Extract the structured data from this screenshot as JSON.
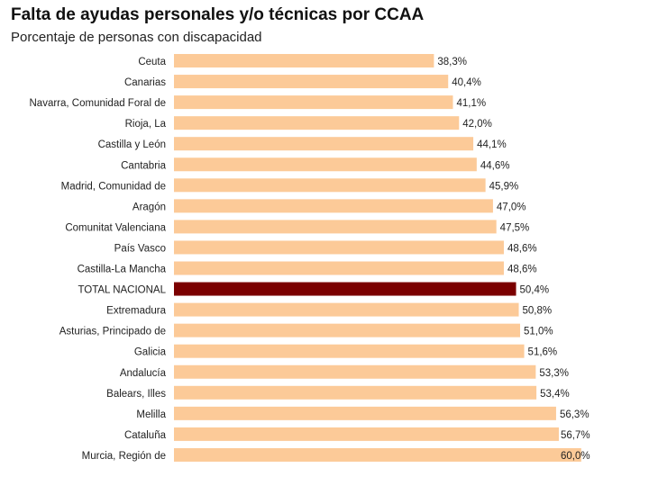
{
  "chart_data": {
    "type": "bar",
    "title": "Falta de ayudas personales y/o técnicas por CCAA",
    "subtitle": "Porcentaje de personas con discapacidad",
    "xlabel": "",
    "ylabel": "",
    "xlim": [
      0,
      60
    ],
    "categories": [
      "Ceuta",
      "Canarias",
      "Navarra, Comunidad Foral de",
      "Rioja, La",
      "Castilla y León",
      "Cantabria",
      "Madrid, Comunidad de",
      "Aragón",
      "Comunitat Valenciana",
      "País Vasco",
      "Castilla-La Mancha",
      "TOTAL NACIONAL",
      "Extremadura",
      "Asturias, Principado de",
      "Galicia",
      "Andalucía",
      "Balears, Illes",
      "Melilla",
      "Cataluña",
      "Murcia, Región de"
    ],
    "values": [
      38.3,
      40.4,
      41.1,
      42.0,
      44.1,
      44.6,
      45.9,
      47.0,
      47.5,
      48.6,
      48.6,
      50.4,
      50.8,
      51.0,
      51.6,
      53.3,
      53.4,
      56.3,
      56.7,
      60.0
    ],
    "labels": [
      "38,3%",
      "40,4%",
      "41,1%",
      "42,0%",
      "44,1%",
      "44,6%",
      "45,9%",
      "47,0%",
      "47,5%",
      "48,6%",
      "48,6%",
      "50,4%",
      "50,8%",
      "51,0%",
      "51,6%",
      "53,3%",
      "53,4%",
      "56,3%",
      "56,7%",
      "60,0%"
    ],
    "highlight": "TOTAL NACIONAL",
    "colors": {
      "bar": "#fcca98",
      "highlight": "#7b0000"
    }
  }
}
